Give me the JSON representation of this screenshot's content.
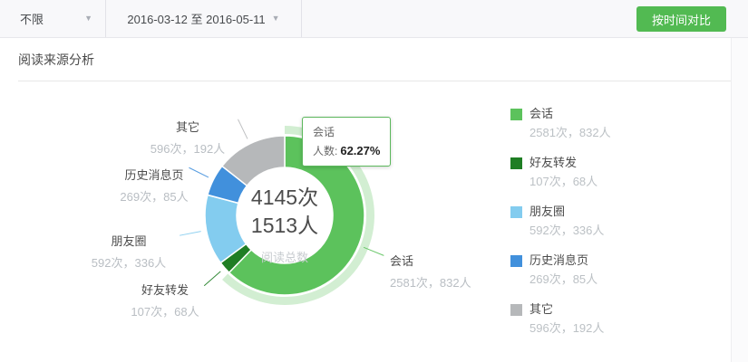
{
  "toolbar": {
    "category_filter": "不限",
    "date_range": "2016-03-12 至 2016-05-11",
    "compare_button": "按时间对比",
    "caret": "▼"
  },
  "section": {
    "title": "阅读来源分析"
  },
  "colors": {
    "button_green": "#52ba52",
    "tooltip_border": "#5cb85c"
  },
  "chart_data": {
    "type": "pie",
    "subtype": "donut",
    "title": "阅读来源分析",
    "legend_position": "right",
    "center": {
      "times": "4145次",
      "people": "1513人",
      "caption": "阅读总数"
    },
    "total": {
      "times": 4145,
      "people": 1513
    },
    "tooltip": {
      "name": "会话",
      "metric": "人数:",
      "value": "62.27%"
    },
    "series": [
      {
        "name": "会话",
        "times": 2581,
        "people": 832,
        "label": "2581次，832人",
        "percent": "62.27%",
        "color": "#5cc25c",
        "highlighted": true
      },
      {
        "name": "好友转发",
        "times": 107,
        "people": 68,
        "label": "107次，68人",
        "percent": "2.58%",
        "color": "#1f7e24",
        "highlighted": false
      },
      {
        "name": "朋友圈",
        "times": 592,
        "people": 336,
        "label": "592次，336人",
        "percent": "14.28%",
        "color": "#83ccef",
        "highlighted": false
      },
      {
        "name": "历史消息页",
        "times": 269,
        "people": 85,
        "label": "269次，85人",
        "percent": "6.49%",
        "color": "#4190dc",
        "highlighted": false
      },
      {
        "name": "其它",
        "times": 596,
        "people": 192,
        "label": "596次，192人",
        "percent": "14.38%",
        "color": "#b6b8ba",
        "highlighted": false
      }
    ]
  }
}
